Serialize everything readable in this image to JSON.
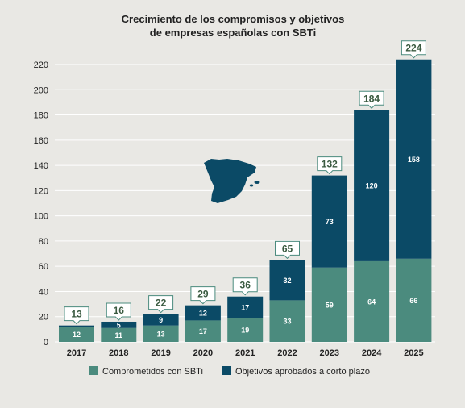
{
  "colors": {
    "background": "#e9e8e4",
    "committed": "#4b8b7e",
    "approved": "#0b4a66",
    "total_label_border": "#4b8b7e",
    "total_label_text": "#3a5a40",
    "axis_text": "#222222",
    "grid": "#ffffff",
    "map": "#0b4a66"
  },
  "icons": {
    "map": "spain-map-icon"
  },
  "chart_data": {
    "type": "bar",
    "stacked": true,
    "title": "Crecimiento de los compromisos y objetivos\nde empresas españolas con SBTi",
    "xlabel": "",
    "ylabel": "",
    "categories": [
      "2017",
      "2018",
      "2019",
      "2020",
      "2021",
      "2022",
      "2023",
      "2024",
      "2025"
    ],
    "series": [
      {
        "name": "Comprometidos con SBTi",
        "values": [
          12,
          11,
          13,
          17,
          19,
          33,
          59,
          64,
          66
        ]
      },
      {
        "name": "Objetivos aprobados a corto plazo",
        "values": [
          1,
          5,
          9,
          12,
          17,
          32,
          73,
          120,
          158
        ]
      }
    ],
    "segment_labels": [
      [
        12,
        11,
        13,
        17,
        19,
        33,
        59,
        64,
        66
      ],
      [
        "",
        5,
        9,
        12,
        17,
        32,
        73,
        120,
        158
      ]
    ],
    "totals": [
      13,
      16,
      22,
      29,
      36,
      65,
      132,
      184,
      224
    ],
    "ylim": [
      0,
      220
    ],
    "yticks": [
      0,
      20,
      40,
      60,
      80,
      100,
      120,
      140,
      160,
      180,
      200,
      220
    ],
    "grid": true,
    "legend": "bottom"
  }
}
